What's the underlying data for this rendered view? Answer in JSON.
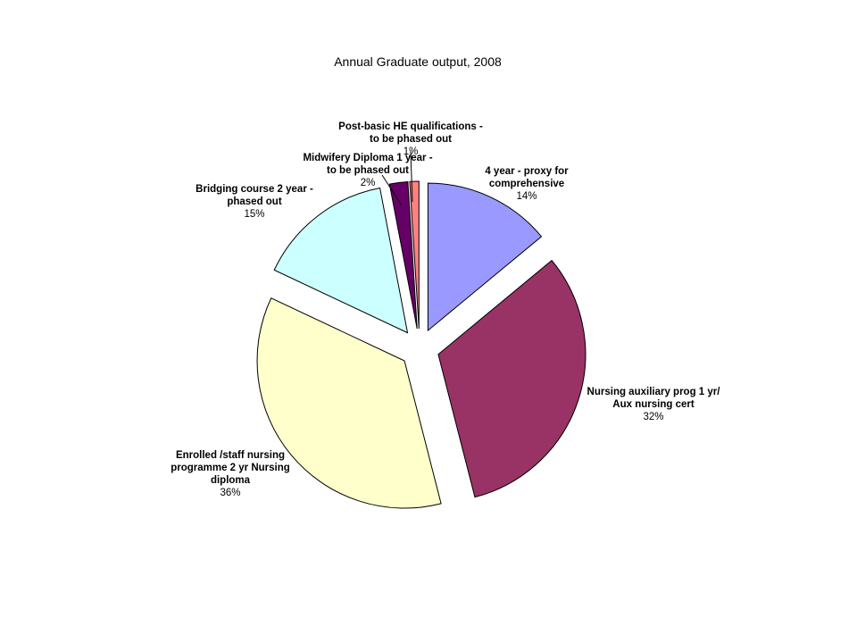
{
  "chart_data": {
    "type": "pie",
    "title": "Annual Graduate output, 2008",
    "slices": [
      {
        "label": [
          "4 year - proxy for",
          "comprehensive"
        ],
        "value": 14,
        "percent_label": "14%",
        "color": "#9999ff"
      },
      {
        "label": [
          "Nursing auxiliary prog 1 yr/",
          "Aux nursing cert"
        ],
        "value": 32,
        "percent_label": "32%",
        "color": "#993366"
      },
      {
        "label": [
          "Enrolled /staff nursing",
          "programme 2 yr Nursing",
          "diploma"
        ],
        "value": 36,
        "percent_label": "36%",
        "color": "#ffffcc"
      },
      {
        "label": [
          "Bridging course 2 year -",
          "phased out"
        ],
        "value": 15,
        "percent_label": "15%",
        "color": "#ccffff"
      },
      {
        "label": [
          "Midwifery Diploma 1 year -",
          "to be phased out"
        ],
        "value": 2,
        "percent_label": "2%",
        "color": "#660066"
      },
      {
        "label": [
          "Post-basic HE qualifications -",
          "to be phased out"
        ],
        "value": 1,
        "percent_label": "1%",
        "color": "#ff8080"
      }
    ]
  }
}
